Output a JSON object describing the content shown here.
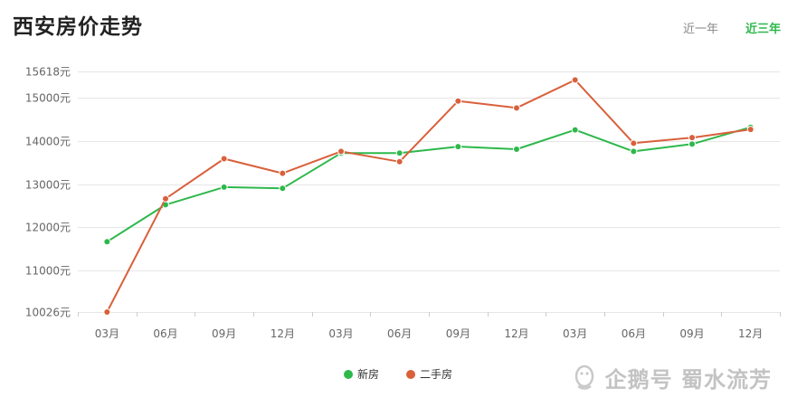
{
  "header": {
    "title": "西安房价走势",
    "tabs": [
      {
        "label": "近一年",
        "active": false
      },
      {
        "label": "近三年",
        "active": true
      }
    ]
  },
  "watermark": {
    "text": "企鹅号 蜀水流芳",
    "logo_icon": "penguin-icon"
  },
  "colors": {
    "new": "#2eb84b",
    "second": "#d9603b",
    "grid": "#e6e6e6",
    "tick": "#666666"
  },
  "chart_data": {
    "type": "line",
    "categories": [
      "03月",
      "06月",
      "09月",
      "12月",
      "03月",
      "06月",
      "09月",
      "12月",
      "03月",
      "06月",
      "09月",
      "12月"
    ],
    "yticks": [
      10026,
      11000,
      12000,
      13000,
      14000,
      15000,
      15618
    ],
    "ytick_labels": [
      "10026元",
      "11000元",
      "12000元",
      "13000元",
      "14000元",
      "15000元",
      "15618元"
    ],
    "ylim": [
      10026,
      15618
    ],
    "grid": true,
    "legend_position": "bottom",
    "series": [
      {
        "name": "新房",
        "color": "#2eb84b",
        "values": [
          11660,
          12520,
          12930,
          12900,
          13720,
          13720,
          13870,
          13810,
          14260,
          13760,
          13930,
          14320
        ]
      },
      {
        "name": "二手房",
        "color": "#d9603b",
        "values": [
          10026,
          12660,
          13590,
          13250,
          13760,
          13520,
          14930,
          14770,
          15420,
          13950,
          14080,
          14270
        ]
      }
    ]
  }
}
